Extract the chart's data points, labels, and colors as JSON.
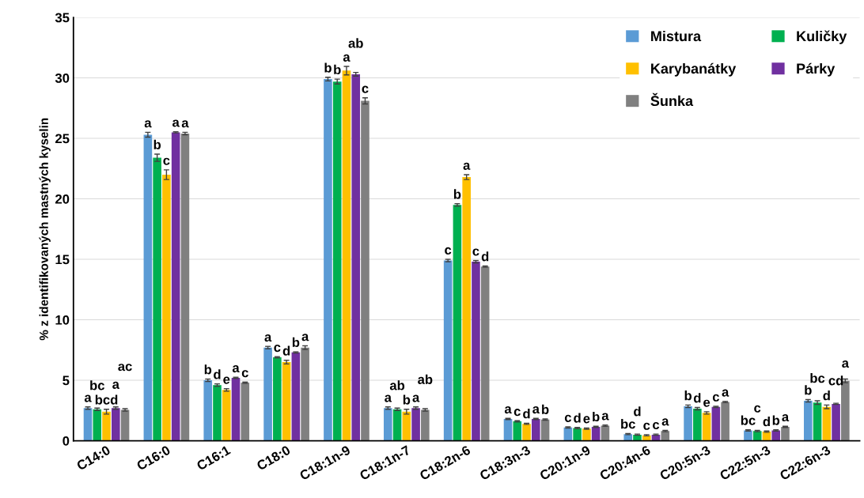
{
  "chart_data": {
    "type": "bar",
    "ylabel": "% z identifikovaných mastných kyselin",
    "categories": [
      "C14:0",
      "C16:0",
      "C16:1",
      "C18:0",
      "C18:1n-9",
      "C18:1n-7",
      "C18:2n-6",
      "C18:3n-3",
      "C20:1n-9",
      "C20:4n-6",
      "C20:5n-3",
      "C22:5n-3",
      "C22:6n-3"
    ],
    "ylim": [
      0,
      35
    ],
    "yticks": [
      0,
      5,
      10,
      15,
      20,
      25,
      30,
      35
    ],
    "grid": "y",
    "legend": "top right",
    "series": [
      {
        "name": "Mistura",
        "color": "#5b9bd5",
        "values": [
          2.7,
          25.3,
          5.0,
          7.7,
          29.9,
          2.7,
          14.9,
          1.8,
          1.1,
          0.55,
          2.85,
          0.85,
          3.3
        ],
        "errors": [
          0.1,
          0.2,
          0.1,
          0.1,
          0.15,
          0.1,
          0.1,
          0.05,
          0.05,
          0.05,
          0.1,
          0.05,
          0.1
        ],
        "value_labels": [
          "a",
          "a",
          "b",
          "a",
          "b",
          "a",
          "c",
          "a",
          "c",
          "bc",
          "b",
          "bc",
          "b"
        ]
      },
      {
        "name": "Kuličky",
        "color": "#00b050",
        "values": [
          2.6,
          23.4,
          4.6,
          6.9,
          29.7,
          2.6,
          19.5,
          1.6,
          1.05,
          0.5,
          2.65,
          0.8,
          3.15
        ],
        "errors": [
          0.1,
          0.3,
          0.1,
          0.05,
          0.2,
          0.1,
          0.1,
          0.05,
          0.05,
          0.05,
          0.1,
          0.05,
          0.15
        ],
        "value_labels": [
          "bc",
          "b",
          "d",
          "c",
          "b",
          "ab",
          "b",
          "c",
          "d",
          "d",
          "d",
          "c",
          "bc"
        ]
      },
      {
        "name": "Karybanátky",
        "color": "#ffc000",
        "values": [
          2.4,
          22.0,
          4.2,
          6.5,
          30.6,
          2.4,
          21.8,
          1.4,
          1.0,
          0.45,
          2.3,
          0.75,
          2.8
        ],
        "errors": [
          0.2,
          0.4,
          0.1,
          0.15,
          0.35,
          0.2,
          0.2,
          0.05,
          0.05,
          0.05,
          0.1,
          0.05,
          0.15
        ],
        "value_labels": [
          "bcd",
          "c",
          "e",
          "d",
          "a",
          "b",
          "a",
          "d",
          "e",
          "c",
          "e",
          "d",
          "d"
        ]
      },
      {
        "name": "Párky",
        "color": "#7030a0",
        "values": [
          2.7,
          25.5,
          5.2,
          7.3,
          30.3,
          2.7,
          14.8,
          1.8,
          1.15,
          0.5,
          2.8,
          0.85,
          3.05
        ],
        "errors": [
          0.1,
          0.05,
          0.05,
          0.05,
          0.15,
          0.1,
          0.1,
          0.05,
          0.05,
          0.05,
          0.05,
          0.05,
          0.05
        ],
        "value_labels": [
          "a",
          "a",
          "a",
          "b",
          "ab",
          "a",
          "c",
          "a",
          "b",
          "c",
          "c",
          "b",
          "cd"
        ]
      },
      {
        "name": "Šunka",
        "color": "#808080",
        "values": [
          2.55,
          25.4,
          4.8,
          7.7,
          28.1,
          2.55,
          14.4,
          1.75,
          1.25,
          0.8,
          3.2,
          1.15,
          4.95
        ],
        "errors": [
          0.1,
          0.1,
          0.05,
          0.15,
          0.25,
          0.1,
          0.05,
          0.05,
          0.05,
          0.05,
          0.05,
          0.05,
          0.15
        ],
        "value_labels": [
          "ac",
          "a",
          "c",
          "a",
          "c",
          "ab",
          "d",
          "b",
          "a",
          "a",
          "a",
          "a",
          "a"
        ]
      }
    ]
  }
}
